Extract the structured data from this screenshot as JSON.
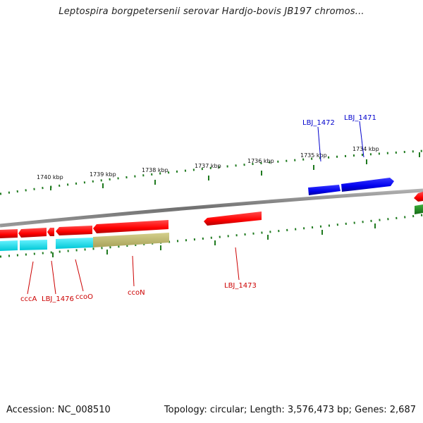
{
  "title": "Leptospira borgpetersenii serovar Hardjo-bovis JB197 chromos...",
  "footer": {
    "accession": "Accession: NC_008510",
    "topology": "Topology: circular; Length: 3,576,473 bp; Genes: 2,687"
  },
  "colors": {
    "background": "#ffffff",
    "backbone": "#808080",
    "tick_green": "#1f7a1f",
    "gene_red": "#ff0000",
    "gene_blue": "#0000ee",
    "gene_green": "#228b22",
    "feature_cyan": "#00e5ee",
    "feature_khaki": "#bdb76b",
    "label_red": "#cc0000",
    "label_blue": "#0000cc"
  },
  "scale_labels": [
    "1740 kbp",
    "1739 kbp",
    "1738 kbp",
    "1737 kbp",
    "1736 kbp",
    "1735 kbp",
    "1734 kbp"
  ],
  "gene_labels": {
    "cccA": "cccA",
    "lbj1476": "LBJ_1476",
    "ccoO": "ccoO",
    "ccoN": "ccoN",
    "lbj1473": "LBJ_1473",
    "lbj1472": "LBJ_1472",
    "lbj1471": "LBJ_1471"
  }
}
